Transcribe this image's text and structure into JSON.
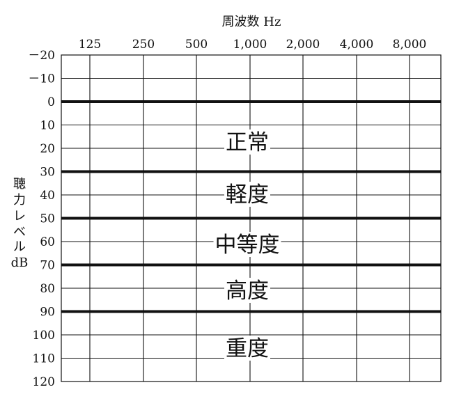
{
  "chart_data": {
    "type": "table",
    "title": "周波数 Hz",
    "ylabel_chars": [
      "聴",
      "力",
      "レ",
      "ベ",
      "ル",
      "dB"
    ],
    "x_tick_labels": [
      "125",
      "250",
      "500",
      "1,000",
      "2,000",
      "4,000",
      "8,000"
    ],
    "y_ticks": [
      -20,
      -10,
      0,
      10,
      20,
      30,
      40,
      50,
      60,
      70,
      80,
      90,
      100,
      110,
      120
    ],
    "y_tick_labels": [
      "－20",
      "－10",
      "0",
      "10",
      "20",
      "30",
      "40",
      "50",
      "60",
      "70",
      "80",
      "90",
      "100",
      "110",
      "120"
    ],
    "ylim": [
      -20,
      120
    ],
    "y_inverted": true,
    "grid": true,
    "thresholds": [
      0,
      30,
      50,
      70,
      90
    ],
    "bands": [
      {
        "label": "正常",
        "from": 0,
        "to": 30
      },
      {
        "label": "軽度",
        "from": 30,
        "to": 50
      },
      {
        "label": "中等度",
        "from": 50,
        "to": 70
      },
      {
        "label": "高度",
        "from": 70,
        "to": 90
      },
      {
        "label": "重度",
        "from": 90,
        "to": 120
      }
    ],
    "colors": {
      "line": "#111111",
      "background": "#ffffff"
    }
  }
}
